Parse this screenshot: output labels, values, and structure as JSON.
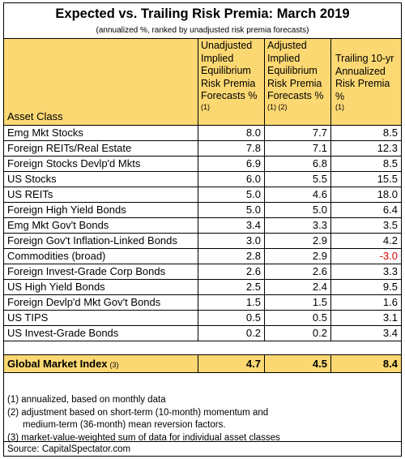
{
  "title": "Expected vs. Trailing Risk Premia: March 2019",
  "subtitle": "(annualized %, ranked by unadjusted risk premia forecasts)",
  "headers": {
    "asset_class": "Asset Class",
    "col1_lines": [
      "Unadjusted",
      "Implied",
      "Equilibrium",
      "Risk Premia",
      "Forecasts %"
    ],
    "col1_note": "(1)",
    "col2_lines": [
      "Adjusted",
      "Implied",
      "Equilibrium",
      "Risk Premia",
      "Forecasts %"
    ],
    "col2_note": "(1) (2)",
    "col3_lines": [
      "Trailing 10-yr",
      "Annualized",
      "Risk Premia",
      "%"
    ],
    "col3_note": "(1)"
  },
  "rows": [
    {
      "name": "Emg Mkt Stocks",
      "unadj": "8.0",
      "adj": "7.7",
      "trail": "8.5"
    },
    {
      "name": "Foreign REITs/Real Estate",
      "unadj": "7.8",
      "adj": "7.1",
      "trail": "12.3"
    },
    {
      "name": "Foreign Stocks Devlp'd Mkts",
      "unadj": "6.9",
      "adj": "6.8",
      "trail": "8.5"
    },
    {
      "name": "US Stocks",
      "unadj": "6.0",
      "adj": "5.5",
      "trail": "15.5"
    },
    {
      "name": "US REITs",
      "unadj": "5.0",
      "adj": "4.6",
      "trail": "18.0"
    },
    {
      "name": "Foreign High Yield Bonds",
      "unadj": "5.0",
      "adj": "5.0",
      "trail": "6.4"
    },
    {
      "name": "Emg Mkt Gov't Bonds",
      "unadj": "3.4",
      "adj": "3.3",
      "trail": "3.5"
    },
    {
      "name": "Foreign Gov't Inflation-Linked Bonds",
      "unadj": "3.0",
      "adj": "2.9",
      "trail": "4.2"
    },
    {
      "name": "Commodities (broad)",
      "unadj": "2.8",
      "adj": "2.9",
      "trail": "-3.0"
    },
    {
      "name": "Foreign Invest-Grade Corp Bonds",
      "unadj": "2.6",
      "adj": "2.6",
      "trail": "3.3"
    },
    {
      "name": "US High Yield Bonds",
      "unadj": "2.5",
      "adj": "2.4",
      "trail": "9.5"
    },
    {
      "name": "Foreign Devlp'd Mkt Gov't Bonds",
      "unadj": "1.5",
      "adj": "1.5",
      "trail": "1.6"
    },
    {
      "name": "US TIPS",
      "unadj": "0.5",
      "adj": "0.5",
      "trail": "3.1"
    },
    {
      "name": "US Invest-Grade Bonds",
      "unadj": "0.2",
      "adj": "0.2",
      "trail": "3.4"
    }
  ],
  "global": {
    "name": "Global Market Index",
    "note": "(3)",
    "unadj": "4.7",
    "adj": "4.5",
    "trail": "8.4"
  },
  "notes": [
    "(1) annualized, based on monthly data",
    "(2) adjustment based on short-term (10-month) momentum and",
    "medium-term (36-month) mean reversion factors.",
    "(3) market-value-weighted sum of data for individual asset classes"
  ],
  "source": "Source:  CapitalSpectator.com",
  "colors": {
    "header_bg": "#fcd873",
    "negative": "#e00000"
  }
}
